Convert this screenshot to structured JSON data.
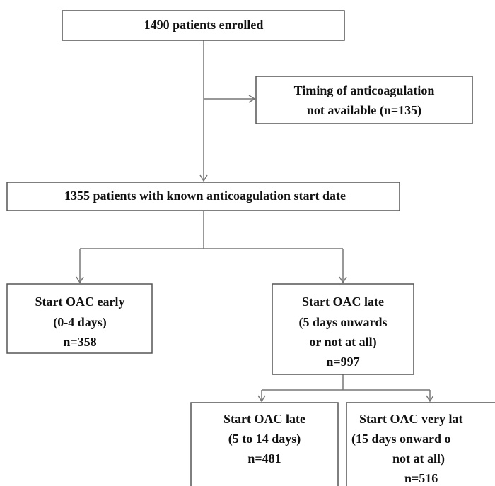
{
  "nodes": [
    {
      "lines": [
        "1490 patients enrolled"
      ]
    },
    {
      "lines": [
        "Timing of anticoagulation",
        "not available (n=135)"
      ]
    },
    {
      "lines": [
        "1355 patients with known anticoagulation start date"
      ]
    },
    {
      "lines": [
        "Start OAC early",
        "(0-4 days)",
        "n=358"
      ]
    },
    {
      "lines": [
        "Start OAC late",
        "(5 days onwards",
        "or not at all)",
        "n=997"
      ]
    },
    {
      "lines": [
        "Start OAC late",
        "(5 to 14 days)",
        "n=481"
      ]
    },
    {
      "lines": [
        "Start OAC very lat",
        "(15 days onward o",
        "not at all)",
        "n=516"
      ]
    }
  ]
}
